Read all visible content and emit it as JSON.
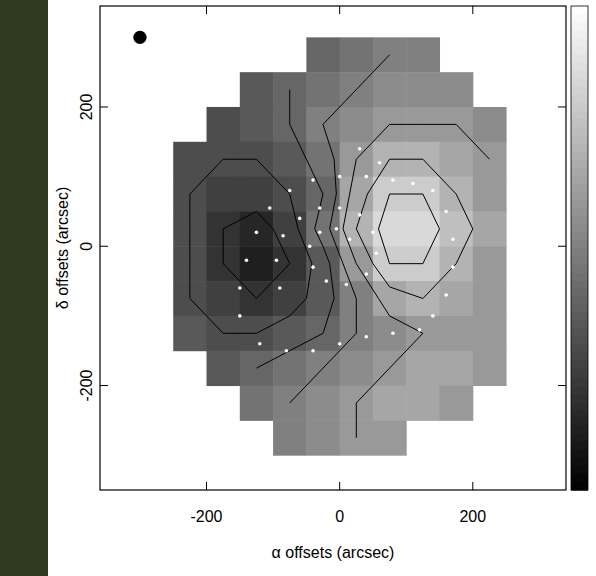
{
  "chart_data": {
    "type": "contour",
    "x_label": "α offsets (arcsec)",
    "y_label": "δ offsets (arcsec)",
    "xlim": [
      -360,
      340
    ],
    "ylim": [
      -350,
      345
    ],
    "xticks": [
      -200,
      0,
      200
    ],
    "yticks": [
      -200,
      0,
      200
    ],
    "grid": false,
    "cells": {
      "x": [
        -275,
        -225,
        -175,
        -125,
        -75,
        -25,
        25,
        75,
        125,
        175,
        225,
        275
      ],
      "y": [
        275,
        225,
        175,
        125,
        75,
        25,
        -25,
        -75,
        -125,
        -175,
        -225,
        -275
      ],
      "values": [
        [
          null,
          null,
          null,
          null,
          null,
          0.4,
          0.45,
          0.5,
          0.5,
          null,
          null,
          null
        ],
        [
          null,
          null,
          null,
          0.35,
          0.4,
          0.45,
          0.5,
          0.55,
          0.55,
          0.55,
          null,
          null
        ],
        [
          null,
          null,
          0.3,
          0.35,
          0.4,
          0.5,
          0.55,
          0.6,
          0.6,
          0.6,
          0.55,
          null
        ],
        [
          null,
          0.3,
          0.3,
          0.3,
          0.35,
          0.45,
          0.6,
          0.7,
          0.7,
          0.65,
          0.6,
          null
        ],
        [
          null,
          0.3,
          0.25,
          0.25,
          0.3,
          0.4,
          0.65,
          0.8,
          0.8,
          0.7,
          0.6,
          null
        ],
        [
          null,
          0.3,
          0.2,
          0.15,
          0.25,
          0.45,
          0.7,
          0.85,
          0.85,
          0.75,
          0.65,
          null
        ],
        [
          null,
          0.3,
          0.2,
          0.12,
          0.2,
          0.35,
          0.6,
          0.8,
          0.8,
          0.7,
          0.6,
          null
        ],
        [
          null,
          0.3,
          0.25,
          0.2,
          0.25,
          0.35,
          0.5,
          0.65,
          0.7,
          0.65,
          0.6,
          null
        ],
        [
          null,
          0.35,
          0.3,
          0.3,
          0.35,
          0.4,
          0.5,
          0.55,
          0.6,
          0.6,
          0.6,
          null
        ],
        [
          null,
          null,
          0.35,
          0.4,
          0.45,
          0.5,
          0.55,
          0.6,
          0.65,
          0.65,
          0.6,
          null
        ],
        [
          null,
          null,
          null,
          0.45,
          0.5,
          0.55,
          0.6,
          0.65,
          0.65,
          0.6,
          null,
          null
        ],
        [
          null,
          null,
          null,
          null,
          0.5,
          0.55,
          0.6,
          0.6,
          null,
          null,
          null,
          null
        ]
      ]
    },
    "contour_levels": [
      0.2,
      0.3,
      0.4,
      0.5,
      0.6,
      0.7,
      0.8
    ],
    "colorbar": {
      "range": [
        0,
        1
      ]
    },
    "points": {
      "color": "#ffffff",
      "marker": "dot",
      "x": [
        -150,
        -150,
        -140,
        -125,
        -105,
        -75,
        -40,
        0,
        40,
        80,
        110,
        140,
        160,
        170,
        170,
        160,
        140,
        -90,
        -95,
        -85,
        -60,
        -30,
        0,
        30,
        50,
        55,
        40,
        10,
        -20,
        -40,
        -45,
        -30,
        -5,
        15,
        -120,
        -80,
        -40,
        0,
        40,
        80,
        120,
        30,
        60
      ],
      "y": [
        -100,
        -60,
        -20,
        20,
        55,
        80,
        95,
        100,
        100,
        95,
        90,
        80,
        50,
        10,
        -30,
        -70,
        -100,
        -60,
        -20,
        15,
        40,
        55,
        55,
        45,
        20,
        -10,
        -40,
        -55,
        -50,
        -30,
        0,
        20,
        25,
        10,
        -140,
        -150,
        -150,
        -140,
        -130,
        -125,
        -120,
        140,
        120
      ]
    },
    "beam": {
      "x": -300,
      "y": 300,
      "diameter": 20
    }
  }
}
